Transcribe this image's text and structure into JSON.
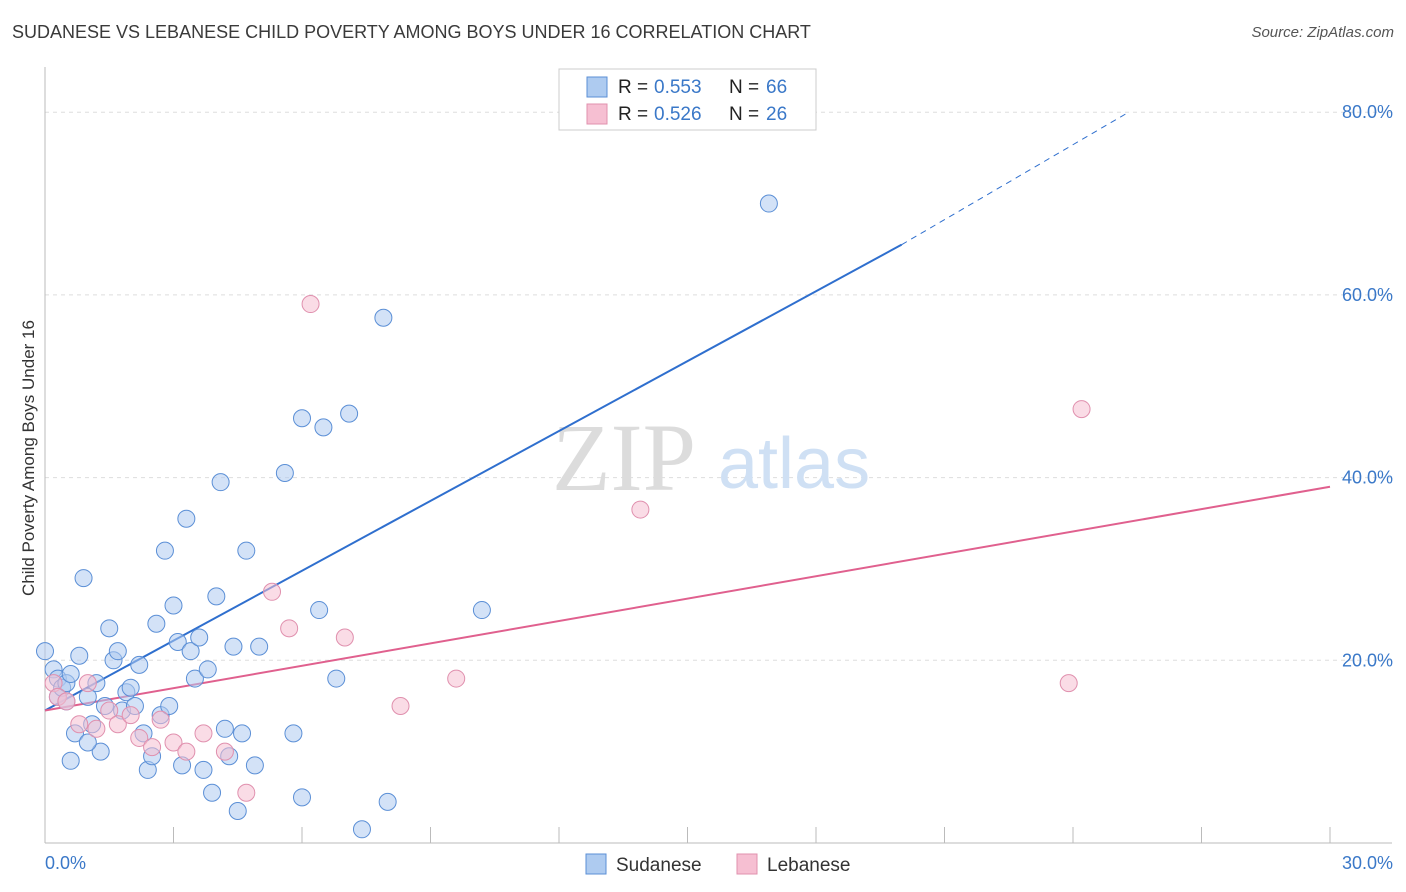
{
  "title": "SUDANESE VS LEBANESE CHILD POVERTY AMONG BOYS UNDER 16 CORRELATION CHART",
  "source": "Source: ZipAtlas.com",
  "watermark": {
    "zip": "ZIP",
    "atlas": "atlas"
  },
  "colors": {
    "sudanese_fill": "#aecbf0",
    "sudanese_stroke": "#5b8fd6",
    "sudanese_line": "#2f6fce",
    "lebanese_fill": "#f6bfd2",
    "lebanese_stroke": "#e090ae",
    "lebanese_line": "#e0608e",
    "grid": "#dddddd",
    "axis_text": "#3a78c8"
  },
  "legend": {
    "rows": [
      {
        "r_label": "R = ",
        "r_value": "0.553",
        "n_label": "N = ",
        "n_value": "66"
      },
      {
        "r_label": "R = ",
        "r_value": "0.526",
        "n_label": "N = ",
        "n_value": "26"
      }
    ]
  },
  "bottom_legend": {
    "items": [
      "Sudanese",
      "Lebanese"
    ]
  },
  "chart_data": {
    "type": "scatter",
    "title": "SUDANESE VS LEBANESE CHILD POVERTY AMONG BOYS UNDER 16 CORRELATION CHART",
    "xlabel": "",
    "ylabel": "Child Poverty Among Boys Under 16",
    "xlim": [
      0,
      30
    ],
    "ylim": [
      0,
      80
    ],
    "x_tick_labels": [
      "0.0%",
      "30.0%"
    ],
    "y_tick_labels": [
      "20.0%",
      "40.0%",
      "60.0%",
      "80.0%"
    ],
    "y_ticks": [
      20,
      40,
      60,
      80
    ],
    "grid": true,
    "legend_position": "top-center",
    "series": [
      {
        "name": "Sudanese",
        "points": [
          [
            0.0,
            21.0
          ],
          [
            0.2,
            19.0
          ],
          [
            0.3,
            18.0
          ],
          [
            0.3,
            16.0
          ],
          [
            0.4,
            17.0
          ],
          [
            0.5,
            17.5
          ],
          [
            0.5,
            15.5
          ],
          [
            0.6,
            18.5
          ],
          [
            0.7,
            12.0
          ],
          [
            0.8,
            20.5
          ],
          [
            0.9,
            29.0
          ],
          [
            1.0,
            16.0
          ],
          [
            1.1,
            13.0
          ],
          [
            1.2,
            17.5
          ],
          [
            1.3,
            10.0
          ],
          [
            1.4,
            15.0
          ],
          [
            1.5,
            23.5
          ],
          [
            1.6,
            20.0
          ],
          [
            1.7,
            21.0
          ],
          [
            1.8,
            14.5
          ],
          [
            1.9,
            16.5
          ],
          [
            2.0,
            17.0
          ],
          [
            2.1,
            15.0
          ],
          [
            2.2,
            19.5
          ],
          [
            2.3,
            12.0
          ],
          [
            2.4,
            8.0
          ],
          [
            2.5,
            9.5
          ],
          [
            2.6,
            24.0
          ],
          [
            2.7,
            14.0
          ],
          [
            2.8,
            32.0
          ],
          [
            2.9,
            15.0
          ],
          [
            3.0,
            26.0
          ],
          [
            3.1,
            22.0
          ],
          [
            3.2,
            8.5
          ],
          [
            3.3,
            35.5
          ],
          [
            3.4,
            21.0
          ],
          [
            3.5,
            18.0
          ],
          [
            3.6,
            22.5
          ],
          [
            3.7,
            8.0
          ],
          [
            3.8,
            19.0
          ],
          [
            3.9,
            5.5
          ],
          [
            4.0,
            27.0
          ],
          [
            4.1,
            39.5
          ],
          [
            4.2,
            12.5
          ],
          [
            4.3,
            9.5
          ],
          [
            4.4,
            21.5
          ],
          [
            4.5,
            3.5
          ],
          [
            4.6,
            12.0
          ],
          [
            4.7,
            32.0
          ],
          [
            4.9,
            8.5
          ],
          [
            5.0,
            21.5
          ],
          [
            5.6,
            40.5
          ],
          [
            5.8,
            12.0
          ],
          [
            6.0,
            5.0
          ],
          [
            6.0,
            46.5
          ],
          [
            6.4,
            25.5
          ],
          [
            6.5,
            45.5
          ],
          [
            6.8,
            18.0
          ],
          [
            7.1,
            47.0
          ],
          [
            7.4,
            1.5
          ],
          [
            7.9,
            57.5
          ],
          [
            8.0,
            4.5
          ],
          [
            10.2,
            25.5
          ],
          [
            16.9,
            70.0
          ],
          [
            0.6,
            9.0
          ],
          [
            1.0,
            11.0
          ]
        ]
      },
      {
        "name": "Lebanese",
        "points": [
          [
            0.2,
            17.5
          ],
          [
            0.3,
            16.0
          ],
          [
            0.5,
            15.5
          ],
          [
            0.8,
            13.0
          ],
          [
            1.0,
            17.5
          ],
          [
            1.2,
            12.5
          ],
          [
            1.5,
            14.5
          ],
          [
            1.7,
            13.0
          ],
          [
            2.0,
            14.0
          ],
          [
            2.2,
            11.5
          ],
          [
            2.5,
            10.5
          ],
          [
            2.7,
            13.5
          ],
          [
            3.0,
            11.0
          ],
          [
            3.3,
            10.0
          ],
          [
            3.7,
            12.0
          ],
          [
            4.2,
            10.0
          ],
          [
            4.7,
            5.5
          ],
          [
            5.3,
            27.5
          ],
          [
            5.7,
            23.5
          ],
          [
            6.2,
            59.0
          ],
          [
            7.0,
            22.5
          ],
          [
            8.3,
            15.0
          ],
          [
            9.6,
            18.0
          ],
          [
            13.9,
            36.5
          ],
          [
            23.9,
            17.5
          ],
          [
            24.2,
            47.5
          ]
        ]
      }
    ],
    "trendlines": [
      {
        "series": "Sudanese",
        "from": [
          0,
          14.5
        ],
        "to": [
          20,
          65.5
        ],
        "extends_to": [
          25.3,
          80.0
        ]
      },
      {
        "series": "Lebanese",
        "from": [
          0,
          14.5
        ],
        "to": [
          30,
          39.0
        ]
      }
    ]
  }
}
